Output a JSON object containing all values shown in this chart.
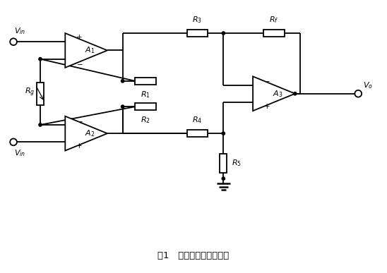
{
  "title": "图1   仪表放大器典型结构",
  "fig_width": 5.48,
  "fig_height": 3.87,
  "dpi": 100,
  "bg_color": "#ffffff",
  "lw": 1.3,
  "dot_r": 0.04
}
